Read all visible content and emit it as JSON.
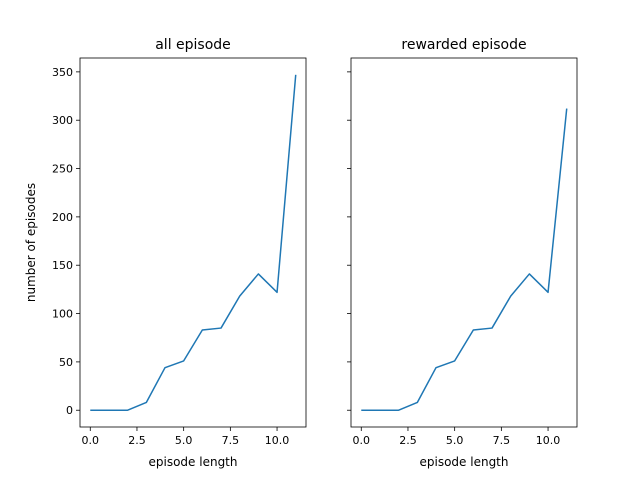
{
  "chart_data": [
    {
      "type": "line",
      "title": "all episode",
      "xlabel": "episode length",
      "ylabel": "number of episodes",
      "xlim": [
        -0.55,
        11.55
      ],
      "ylim": [
        -17.35,
        364.35
      ],
      "xticks": [
        0,
        2.5,
        5,
        7.5,
        10
      ],
      "xtick_labels": [
        "0.0",
        "2.5",
        "5.0",
        "7.5",
        "10.0"
      ],
      "yticks": [
        0,
        50,
        100,
        150,
        200,
        250,
        300,
        350
      ],
      "ytick_labels": [
        "0",
        "50",
        "100",
        "150",
        "200",
        "250",
        "300",
        "350"
      ],
      "grid": false,
      "color": "#1f77b4",
      "series": [
        {
          "x": [
            0,
            1,
            2,
            3,
            4,
            5,
            6,
            7,
            8,
            9,
            10,
            11
          ],
          "values": [
            0,
            0,
            0,
            8,
            44,
            51,
            83,
            85,
            118,
            141,
            122,
            347
          ]
        }
      ]
    },
    {
      "type": "line",
      "title": "rewarded episode",
      "xlabel": "episode length",
      "ylabel": "",
      "xlim": [
        -0.55,
        11.55
      ],
      "ylim": [
        -17.35,
        364.35
      ],
      "xticks": [
        0,
        2.5,
        5,
        7.5,
        10
      ],
      "xtick_labels": [
        "0.0",
        "2.5",
        "5.0",
        "7.5",
        "10.0"
      ],
      "yticks": [
        0,
        50,
        100,
        150,
        200,
        250,
        300,
        350
      ],
      "ytick_labels": [],
      "grid": false,
      "color": "#1f77b4",
      "series": [
        {
          "x": [
            0,
            1,
            2,
            3,
            4,
            5,
            6,
            7,
            8,
            9,
            10,
            11
          ],
          "values": [
            0,
            0,
            0,
            8,
            44,
            51,
            83,
            85,
            118,
            141,
            122,
            312
          ]
        }
      ]
    }
  ]
}
